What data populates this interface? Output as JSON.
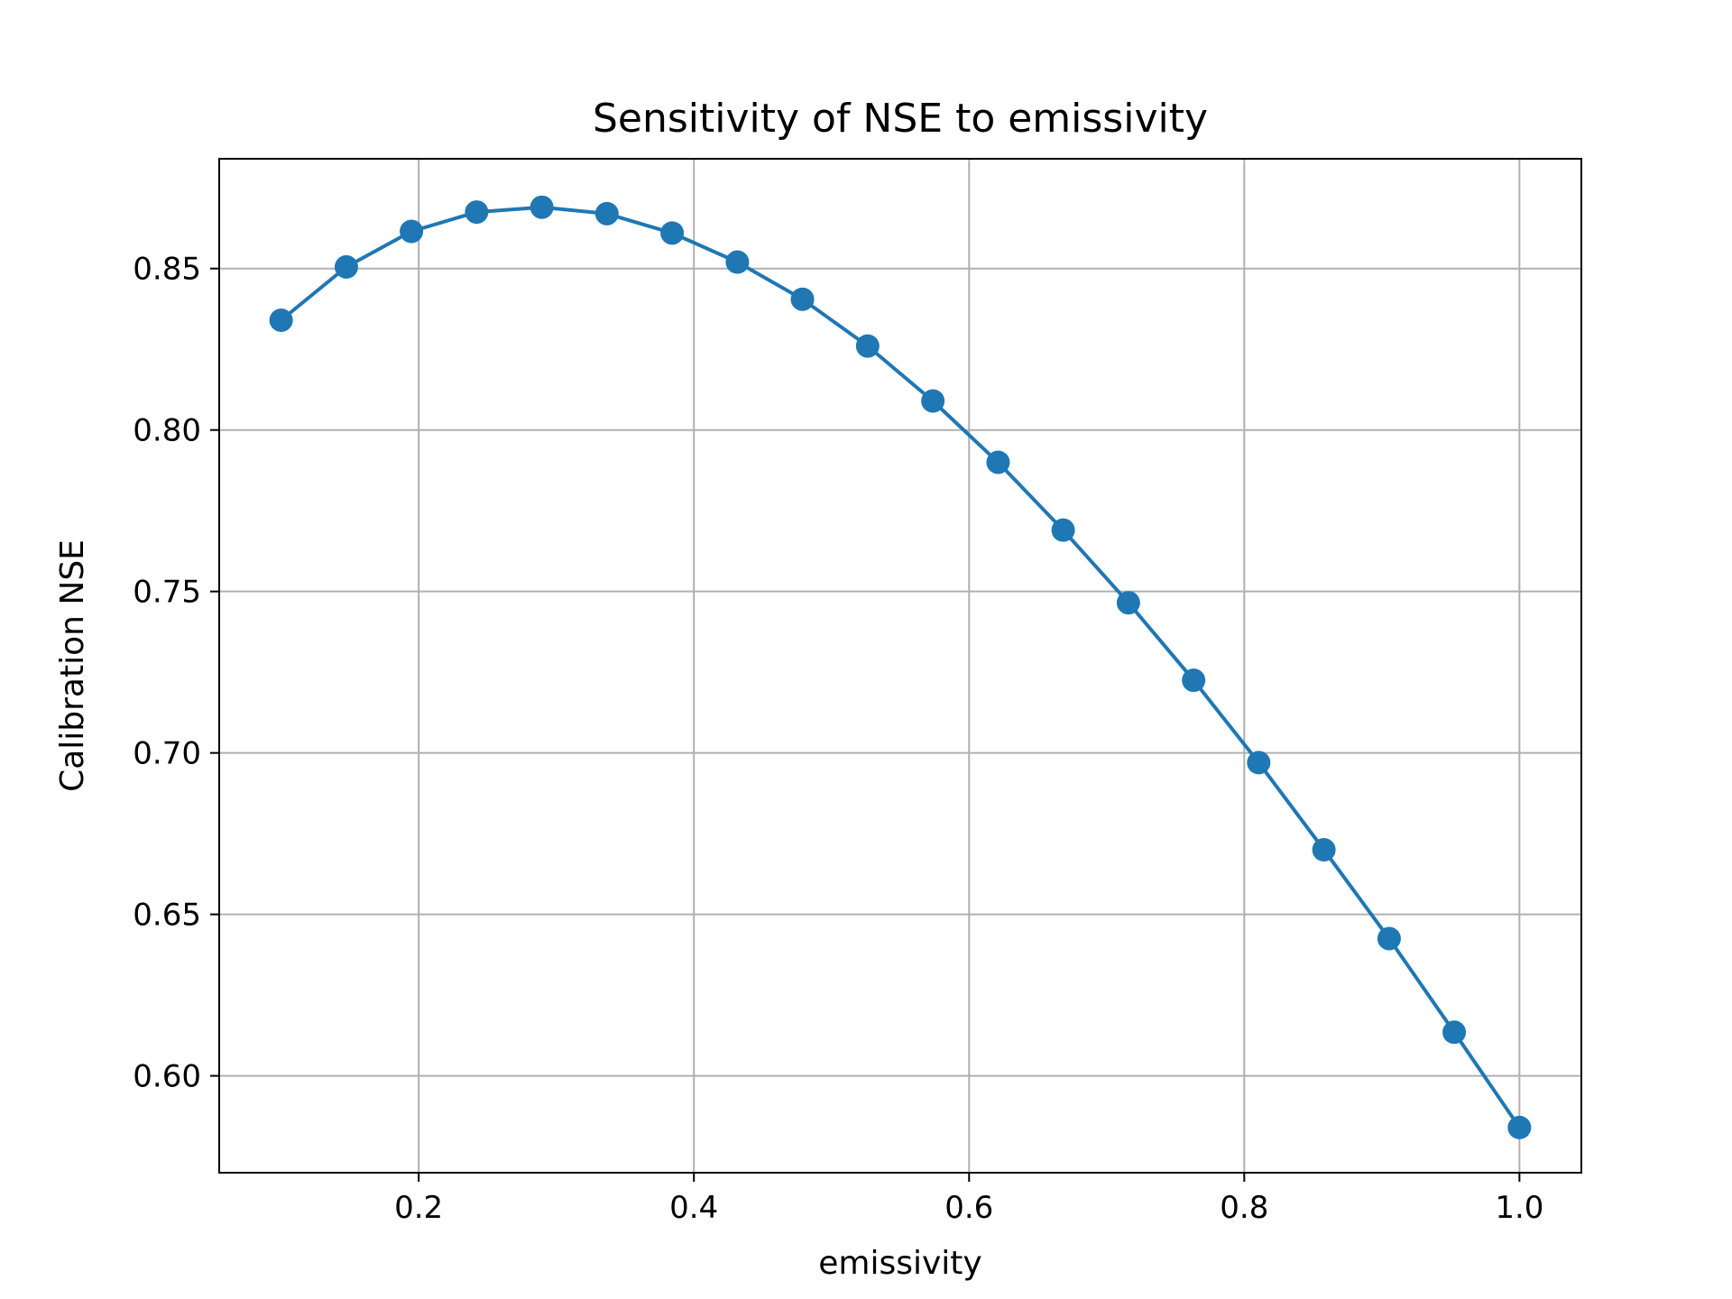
{
  "chart_data": {
    "type": "line",
    "title": "Sensitivity of NSE to emissivity",
    "xlabel": "emissivity",
    "ylabel": "Calibration NSE",
    "xlim": [
      0.055,
      1.045
    ],
    "ylim": [
      0.57,
      0.884
    ],
    "xticks": [
      0.2,
      0.4,
      0.6,
      0.8,
      1.0
    ],
    "xtick_labels": [
      "0.2",
      "0.4",
      "0.6",
      "0.8",
      "1.0"
    ],
    "yticks": [
      0.6,
      0.65,
      0.7,
      0.75,
      0.8,
      0.85
    ],
    "ytick_labels": [
      "0.60",
      "0.65",
      "0.70",
      "0.75",
      "0.80",
      "0.85"
    ],
    "grid": true,
    "colors": {
      "series": "#1f77b4",
      "grid": "#b0b0b0",
      "axes": "#000000"
    },
    "series": [
      {
        "marker": "circle",
        "x": [
          0.1,
          0.1474,
          0.1947,
          0.2421,
          0.2895,
          0.3368,
          0.3842,
          0.4316,
          0.4789,
          0.5263,
          0.5737,
          0.6211,
          0.6684,
          0.7158,
          0.7632,
          0.8105,
          0.8579,
          0.9053,
          0.9526,
          1.0
        ],
        "y": [
          0.834,
          0.8505,
          0.8615,
          0.8675,
          0.869,
          0.867,
          0.861,
          0.852,
          0.8405,
          0.826,
          0.809,
          0.79,
          0.769,
          0.7465,
          0.7225,
          0.697,
          0.67,
          0.6425,
          0.6135,
          0.584
        ]
      }
    ]
  }
}
